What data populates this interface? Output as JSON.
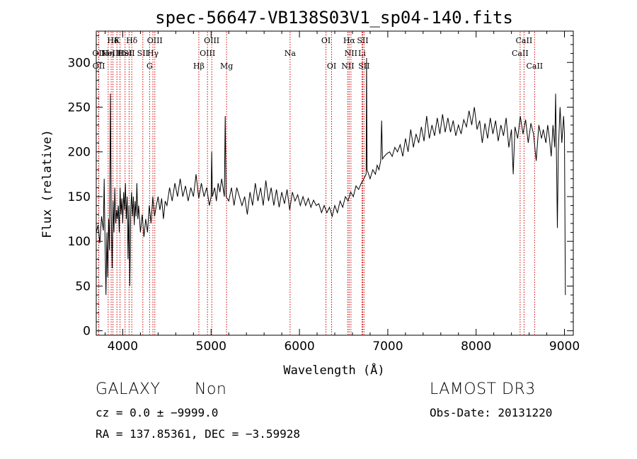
{
  "chart_data": {
    "type": "line",
    "title": "spec-56647-VB138S03V1_sp04-140.fits",
    "xlabel": "Wavelength (Å)",
    "ylabel": "Flux (relative)",
    "xlim": [
      3700,
      9100
    ],
    "ylim": [
      -5,
      335
    ],
    "xticks": [
      4000,
      5000,
      6000,
      7000,
      8000,
      9000
    ],
    "yticks": [
      0,
      50,
      100,
      150,
      200,
      250,
      300
    ],
    "grid": false,
    "series": [
      {
        "points": [
          [
            3700,
            110
          ],
          [
            3720,
            118
          ],
          [
            3740,
            98
          ],
          [
            3760,
            128
          ],
          [
            3780,
            112
          ],
          [
            3790,
            170
          ],
          [
            3800,
            95
          ],
          [
            3810,
            40
          ],
          [
            3820,
            110
          ],
          [
            3830,
            60
          ],
          [
            3840,
            125
          ],
          [
            3850,
            90
          ],
          [
            3860,
            265
          ],
          [
            3870,
            130
          ],
          [
            3880,
            70
          ],
          [
            3890,
            145
          ],
          [
            3900,
            110
          ],
          [
            3910,
            160
          ],
          [
            3920,
            120
          ],
          [
            3930,
            135
          ],
          [
            3940,
            125
          ],
          [
            3950,
            140
          ],
          [
            3960,
            110
          ],
          [
            3970,
            160
          ],
          [
            3980,
            130
          ],
          [
            3990,
            148
          ],
          [
            4000,
            120
          ],
          [
            4010,
            155
          ],
          [
            4020,
            135
          ],
          [
            4030,
            165
          ],
          [
            4040,
            125
          ],
          [
            4050,
            150
          ],
          [
            4060,
            80
          ],
          [
            4070,
            140
          ],
          [
            4080,
            50
          ],
          [
            4090,
            135
          ],
          [
            4100,
            155
          ],
          [
            4110,
            128
          ],
          [
            4120,
            150
          ],
          [
            4130,
            118
          ],
          [
            4140,
            145
          ],
          [
            4150,
            128
          ],
          [
            4160,
            165
          ],
          [
            4170,
            125
          ],
          [
            4180,
            140
          ],
          [
            4200,
            110
          ],
          [
            4220,
            130
          ],
          [
            4240,
            105
          ],
          [
            4260,
            125
          ],
          [
            4280,
            110
          ],
          [
            4300,
            140
          ],
          [
            4320,
            120
          ],
          [
            4340,
            150
          ],
          [
            4360,
            128
          ],
          [
            4380,
            140
          ],
          [
            4400,
            150
          ],
          [
            4420,
            135
          ],
          [
            4440,
            148
          ],
          [
            4460,
            125
          ],
          [
            4480,
            145
          ],
          [
            4500,
            140
          ],
          [
            4530,
            160
          ],
          [
            4560,
            145
          ],
          [
            4590,
            165
          ],
          [
            4620,
            150
          ],
          [
            4650,
            170
          ],
          [
            4680,
            150
          ],
          [
            4710,
            162
          ],
          [
            4740,
            145
          ],
          [
            4770,
            160
          ],
          [
            4800,
            150
          ],
          [
            4830,
            175
          ],
          [
            4860,
            148
          ],
          [
            4890,
            165
          ],
          [
            4920,
            150
          ],
          [
            4950,
            160
          ],
          [
            4980,
            140
          ],
          [
            5000,
            150
          ],
          [
            5007,
            200
          ],
          [
            5015,
            150
          ],
          [
            5040,
            160
          ],
          [
            5060,
            145
          ],
          [
            5080,
            165
          ],
          [
            5100,
            155
          ],
          [
            5120,
            170
          ],
          [
            5150,
            150
          ],
          [
            5160,
            240
          ],
          [
            5170,
            150
          ],
          [
            5200,
            145
          ],
          [
            5230,
            160
          ],
          [
            5260,
            140
          ],
          [
            5290,
            160
          ],
          [
            5320,
            150
          ],
          [
            5350,
            140
          ],
          [
            5380,
            150
          ],
          [
            5410,
            130
          ],
          [
            5440,
            155
          ],
          [
            5470,
            140
          ],
          [
            5500,
            165
          ],
          [
            5530,
            145
          ],
          [
            5560,
            160
          ],
          [
            5590,
            140
          ],
          [
            5620,
            168
          ],
          [
            5650,
            145
          ],
          [
            5680,
            160
          ],
          [
            5710,
            140
          ],
          [
            5740,
            158
          ],
          [
            5770,
            138
          ],
          [
            5800,
            155
          ],
          [
            5830,
            142
          ],
          [
            5860,
            158
          ],
          [
            5890,
            135
          ],
          [
            5920,
            155
          ],
          [
            5950,
            145
          ],
          [
            5980,
            152
          ],
          [
            6010,
            140
          ],
          [
            6040,
            150
          ],
          [
            6070,
            140
          ],
          [
            6100,
            148
          ],
          [
            6130,
            138
          ],
          [
            6160,
            146
          ],
          [
            6190,
            140
          ],
          [
            6220,
            142
          ],
          [
            6250,
            132
          ],
          [
            6280,
            140
          ],
          [
            6310,
            132
          ],
          [
            6340,
            138
          ],
          [
            6370,
            128
          ],
          [
            6400,
            140
          ],
          [
            6430,
            132
          ],
          [
            6460,
            145
          ],
          [
            6490,
            138
          ],
          [
            6520,
            150
          ],
          [
            6550,
            145
          ],
          [
            6580,
            155
          ],
          [
            6610,
            150
          ],
          [
            6640,
            162
          ],
          [
            6670,
            158
          ],
          [
            6700,
            165
          ],
          [
            6720,
            168
          ],
          [
            6740,
            172
          ],
          [
            6755,
            175
          ],
          [
            6760,
            305
          ],
          [
            6765,
            180
          ],
          [
            6780,
            176
          ],
          [
            6800,
            170
          ],
          [
            6830,
            180
          ],
          [
            6860,
            175
          ],
          [
            6880,
            185
          ],
          [
            6900,
            180
          ],
          [
            6920,
            190
          ],
          [
            6930,
            235
          ],
          [
            6940,
            192
          ],
          [
            6960,
            195
          ],
          [
            6990,
            198
          ],
          [
            7020,
            200
          ],
          [
            7050,
            195
          ],
          [
            7080,
            205
          ],
          [
            7110,
            200
          ],
          [
            7140,
            208
          ],
          [
            7170,
            195
          ],
          [
            7200,
            215
          ],
          [
            7230,
            200
          ],
          [
            7260,
            225
          ],
          [
            7290,
            205
          ],
          [
            7320,
            220
          ],
          [
            7350,
            210
          ],
          [
            7380,
            228
          ],
          [
            7410,
            212
          ],
          [
            7440,
            240
          ],
          [
            7470,
            215
          ],
          [
            7500,
            230
          ],
          [
            7530,
            218
          ],
          [
            7560,
            238
          ],
          [
            7590,
            220
          ],
          [
            7620,
            242
          ],
          [
            7650,
            222
          ],
          [
            7680,
            238
          ],
          [
            7710,
            222
          ],
          [
            7740,
            235
          ],
          [
            7770,
            218
          ],
          [
            7800,
            230
          ],
          [
            7830,
            220
          ],
          [
            7860,
            236
          ],
          [
            7890,
            228
          ],
          [
            7920,
            246
          ],
          [
            7950,
            230
          ],
          [
            7980,
            250
          ],
          [
            8010,
            225
          ],
          [
            8040,
            235
          ],
          [
            8070,
            210
          ],
          [
            8100,
            232
          ],
          [
            8130,
            215
          ],
          [
            8160,
            238
          ],
          [
            8190,
            220
          ],
          [
            8220,
            235
          ],
          [
            8250,
            212
          ],
          [
            8280,
            230
          ],
          [
            8310,
            218
          ],
          [
            8340,
            238
          ],
          [
            8370,
            205
          ],
          [
            8400,
            225
          ],
          [
            8420,
            175
          ],
          [
            8440,
            228
          ],
          [
            8470,
            215
          ],
          [
            8500,
            240
          ],
          [
            8530,
            220
          ],
          [
            8560,
            236
          ],
          [
            8590,
            210
          ],
          [
            8620,
            232
          ],
          [
            8650,
            220
          ],
          [
            8680,
            190
          ],
          [
            8710,
            230
          ],
          [
            8740,
            215
          ],
          [
            8760,
            225
          ],
          [
            8790,
            210
          ],
          [
            8810,
            230
          ],
          [
            8830,
            215
          ],
          [
            8850,
            195
          ],
          [
            8870,
            230
          ],
          [
            8890,
            205
          ],
          [
            8900,
            265
          ],
          [
            8910,
            190
          ],
          [
            8920,
            115
          ],
          [
            8930,
            200
          ],
          [
            8950,
            250
          ],
          [
            8970,
            210
          ],
          [
            8990,
            240
          ],
          [
            9000,
            220
          ],
          [
            9010,
            40
          ]
        ]
      }
    ],
    "line_annotations": [
      {
        "x": 3726,
        "label": "OII",
        "row": 2
      },
      {
        "x": 3729,
        "label": "OII",
        "row": 3
      },
      {
        "x": 3835,
        "label": "Hη",
        "row": 2
      },
      {
        "x": 3869,
        "label": "NeIII",
        "row": 2
      },
      {
        "x": 3889,
        "label": "Hδ",
        "row": 1
      },
      {
        "x": 3934,
        "label": "K",
        "row": 1
      },
      {
        "x": 3969,
        "label": "H",
        "row": 2
      },
      {
        "x": 4026,
        "label": "HeI",
        "row": 2
      },
      {
        "x": 4072,
        "label": "SII",
        "row": 2
      },
      {
        "x": 4102,
        "label": "Hδ",
        "row": 1
      },
      {
        "x": 4227,
        "label": "SII",
        "row": 2
      },
      {
        "x": 4304,
        "label": "G",
        "row": 3
      },
      {
        "x": 4341,
        "label": "Hγ",
        "row": 2
      },
      {
        "x": 4363,
        "label": "OIII",
        "row": 1
      },
      {
        "x": 4861,
        "label": "Hβ",
        "row": 3
      },
      {
        "x": 4959,
        "label": "OIII",
        "row": 2
      },
      {
        "x": 5007,
        "label": "OIII",
        "row": 1
      },
      {
        "x": 5175,
        "label": "Mg",
        "row": 3
      },
      {
        "x": 5894,
        "label": "Na",
        "row": 2
      },
      {
        "x": 6300,
        "label": "OI",
        "row": 1
      },
      {
        "x": 6364,
        "label": "OI",
        "row": 3
      },
      {
        "x": 6548,
        "label": "NII",
        "row": 3
      },
      {
        "x": 6563,
        "label": "Hα",
        "row": 1
      },
      {
        "x": 6583,
        "label": "NII",
        "row": 2
      },
      {
        "x": 6708,
        "label": "Li",
        "row": 2
      },
      {
        "x": 6716,
        "label": "SII",
        "row": 1
      },
      {
        "x": 6731,
        "label": "SII",
        "row": 3
      },
      {
        "x": 8498,
        "label": "CaII",
        "row": 2
      },
      {
        "x": 8542,
        "label": "CaII",
        "row": 1
      },
      {
        "x": 8662,
        "label": "CaII",
        "row": 3
      }
    ]
  },
  "info": {
    "object_class": "GALAXY",
    "subclass": "Non",
    "survey": "LAMOST DR3",
    "cz": "cz = 0.0 ± −9999.0",
    "obs_date": "Obs-Date: 20131220",
    "radec": "RA = 137.85361, DEC =  −3.59928"
  }
}
